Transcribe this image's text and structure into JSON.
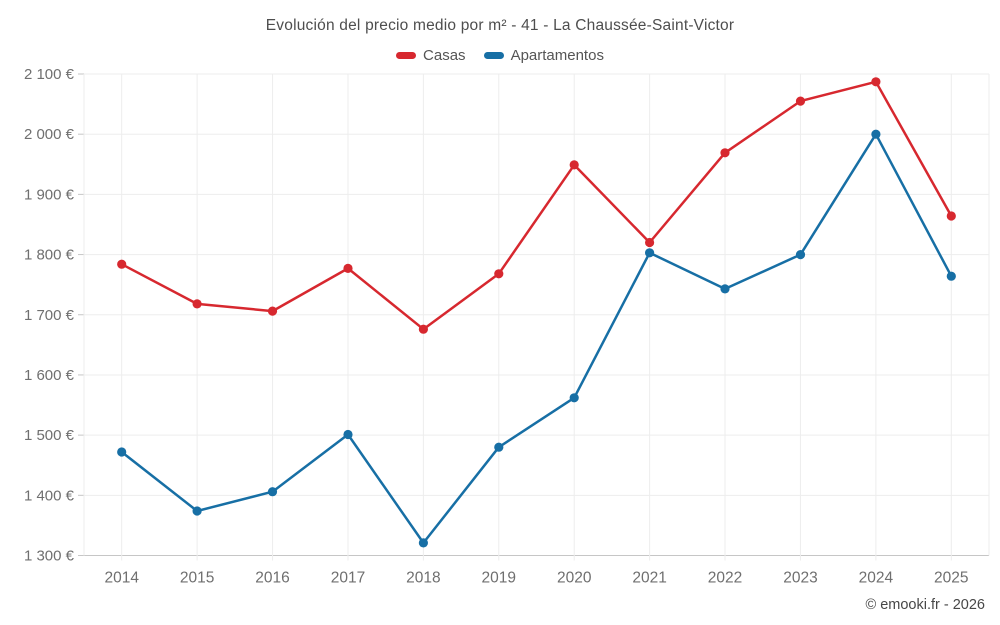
{
  "chart_data": {
    "type": "line",
    "title": "Evolución del precio medio por m² - 41 - La Chaussée-Saint-Victor",
    "categories": [
      "2014",
      "2015",
      "2016",
      "2017",
      "2018",
      "2019",
      "2020",
      "2021",
      "2022",
      "2023",
      "2024",
      "2025"
    ],
    "series": [
      {
        "name": "Casas",
        "color": "#d7282f",
        "values": [
          1784,
          1718,
          1706,
          1777,
          1676,
          1768,
          1949,
          1820,
          1969,
          2055,
          2087,
          1864
        ]
      },
      {
        "name": "Apartamentos",
        "color": "#176fa5",
        "values": [
          1472,
          1374,
          1406,
          1501,
          1321,
          1480,
          1562,
          1803,
          1743,
          1800,
          2000,
          1764
        ]
      }
    ],
    "ylim": [
      1300,
      2100
    ],
    "ytick_step": 100,
    "y_unit": "€",
    "grid": true,
    "legend_position": "top"
  },
  "footer": {
    "watermark": "© emooki.fr - 2026"
  },
  "theme": {
    "background": "#ffffff",
    "grid_color": "#ededed",
    "axis_color": "#c6c6c6",
    "tick_label_color": "#6f6f6f",
    "title_color": "#4e4e4e",
    "legend_text_color": "#555555",
    "watermark_color": "#474747"
  }
}
